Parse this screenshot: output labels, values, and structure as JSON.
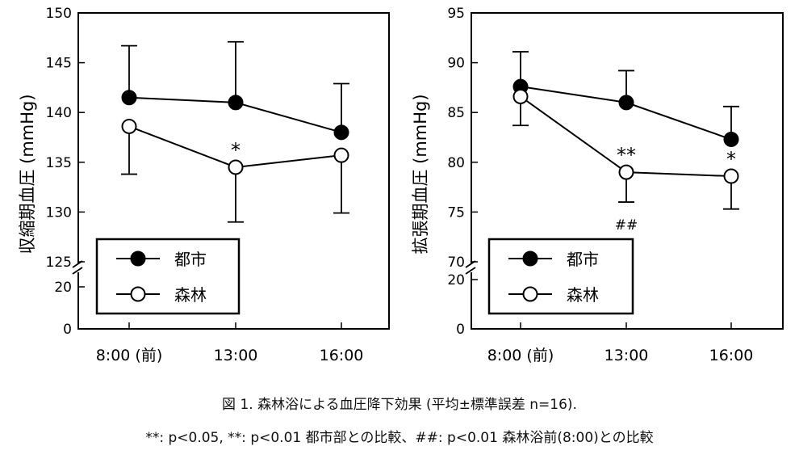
{
  "caption": {
    "title": "図 1. 森林浴による血圧降下効果 (平均±標準誤差 n=16).",
    "note": "**: p<0.05, **: p<0.01 都市部との比較、##: p<0.01 森林浴前(8:00)との比較"
  },
  "chart_data": [
    {
      "type": "line",
      "ylabel": "収縮期血圧 (mmHg)",
      "categories": [
        "8:00 (前)",
        "13:00",
        "16:00"
      ],
      "ylim": [
        125,
        150
      ],
      "yticks": [
        "150",
        "145",
        "140",
        "135",
        "130",
        "125"
      ],
      "broken_axis_lower_ticks": [
        "20",
        "0"
      ],
      "series": [
        {
          "name": "都市",
          "marker": "filled",
          "color": "#000000",
          "values": [
            141.5,
            141.0,
            138.0
          ],
          "err_upper": [
            146.7,
            147.1,
            142.9
          ],
          "err_lower": [
            141.5,
            141.0,
            138.0
          ]
        },
        {
          "name": "森林",
          "marker": "open",
          "color": "#000000",
          "values": [
            138.6,
            134.5,
            135.7
          ],
          "err_upper": [
            138.6,
            134.5,
            135.7
          ],
          "err_lower": [
            133.8,
            129.0,
            129.9
          ]
        }
      ],
      "annotations": [
        {
          "text": "*",
          "category": "13:00",
          "value": 136.2
        }
      ],
      "legend": {
        "position": "bottom-left",
        "entries": [
          "都市",
          "森林"
        ]
      }
    },
    {
      "type": "line",
      "ylabel": "拡張期血圧 (mmHg)",
      "categories": [
        "8:00 (前)",
        "13:00",
        "16:00"
      ],
      "ylim": [
        70,
        95
      ],
      "yticks": [
        "95",
        "90",
        "85",
        "80",
        "75",
        "70"
      ],
      "broken_axis_lower_ticks": [
        "20",
        "0"
      ],
      "series": [
        {
          "name": "都市",
          "marker": "filled",
          "color": "#000000",
          "values": [
            87.6,
            86.0,
            82.3
          ],
          "err_upper": [
            91.1,
            89.2,
            85.6
          ],
          "err_lower": [
            87.6,
            86.0,
            82.3
          ]
        },
        {
          "name": "森林",
          "marker": "open",
          "color": "#000000",
          "values": [
            86.6,
            79.0,
            78.6
          ],
          "err_upper": [
            86.6,
            79.0,
            78.6
          ],
          "err_lower": [
            83.7,
            76.0,
            75.3
          ]
        }
      ],
      "annotations": [
        {
          "text": "**",
          "category": "13:00",
          "value": 80.7
        },
        {
          "text": "##",
          "category": "13:00",
          "value": 73.9
        },
        {
          "text": "*",
          "category": "16:00",
          "value": 80.3
        }
      ],
      "legend": {
        "position": "bottom-left",
        "entries": [
          "都市",
          "森林"
        ]
      }
    }
  ]
}
